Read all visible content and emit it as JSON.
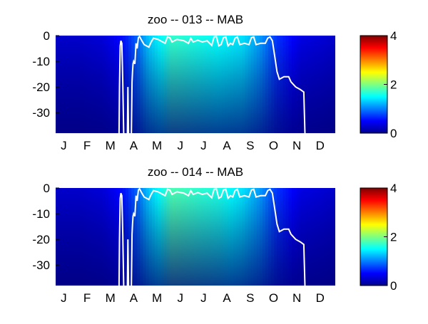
{
  "chart_data": [
    {
      "type": "heatmap",
      "title": "zoo -- 013 -- MAB",
      "x_tick_labels": [
        "J",
        "F",
        "M",
        "A",
        "M",
        "J",
        "J",
        "A",
        "S",
        "O",
        "N",
        "D"
      ],
      "y_ticks": [
        0,
        -10,
        -20,
        -30
      ],
      "ylim": [
        -38,
        0
      ],
      "xlim_month": [
        0,
        12
      ],
      "colorbar": {
        "ticks": [
          0,
          2,
          4
        ],
        "range": [
          0,
          4
        ],
        "colormap": "jet"
      },
      "surface_values": {
        "month": [
          0.0,
          1.0,
          2.0,
          2.5,
          3.0,
          3.5,
          4.0,
          5.0,
          6.0,
          7.0,
          8.0,
          8.8,
          9.5,
          10.5,
          12.0
        ],
        "value": [
          0.3,
          0.3,
          0.35,
          0.45,
          0.6,
          0.9,
          1.3,
          1.7,
          1.6,
          1.5,
          1.4,
          1.1,
          0.7,
          0.4,
          0.3
        ]
      },
      "contour_line": {
        "color": "#ffffff",
        "points": [
          [
            2.72,
            -38
          ],
          [
            2.74,
            -20
          ],
          [
            2.77,
            -4
          ],
          [
            2.8,
            -2
          ],
          [
            2.84,
            -3
          ],
          [
            2.88,
            -18
          ],
          [
            2.92,
            -38
          ],
          [
            3.08,
            -38
          ],
          [
            3.1,
            -20
          ],
          [
            3.13,
            -38
          ],
          [
            3.25,
            -38
          ],
          [
            3.28,
            -18
          ],
          [
            3.3,
            -14
          ],
          [
            3.32,
            -11
          ],
          [
            3.35,
            -10
          ],
          [
            3.4,
            -11
          ],
          [
            3.42,
            -8
          ],
          [
            3.45,
            -3
          ],
          [
            3.5,
            -5
          ],
          [
            3.55,
            -0.8
          ],
          [
            3.6,
            -0.3
          ],
          [
            3.7,
            -2
          ],
          [
            3.8,
            -3.5
          ],
          [
            4.0,
            -4.5
          ],
          [
            4.1,
            -2.5
          ],
          [
            4.2,
            -1
          ],
          [
            4.4,
            -1.5
          ],
          [
            4.5,
            -2
          ],
          [
            4.7,
            -3
          ],
          [
            4.8,
            -0.5
          ],
          [
            4.9,
            -0.8
          ],
          [
            5.0,
            -2.5
          ],
          [
            5.2,
            -1.5
          ],
          [
            5.5,
            -2
          ],
          [
            5.7,
            -3
          ],
          [
            5.8,
            -1
          ],
          [
            5.9,
            -2.5
          ],
          [
            6.1,
            -1.8
          ],
          [
            6.3,
            -2.5
          ],
          [
            6.5,
            -2
          ],
          [
            6.7,
            -3.8
          ],
          [
            6.8,
            -0.5
          ],
          [
            6.9,
            -0.4
          ],
          [
            7.0,
            -4
          ],
          [
            7.1,
            -3.5
          ],
          [
            7.2,
            -0.8
          ],
          [
            7.3,
            -0.5
          ],
          [
            7.4,
            -4
          ],
          [
            7.5,
            -3
          ],
          [
            7.6,
            -3.5
          ],
          [
            7.7,
            -1
          ],
          [
            7.8,
            -0.5
          ],
          [
            7.9,
            -3.5
          ],
          [
            8.1,
            -3
          ],
          [
            8.3,
            -3.5
          ],
          [
            8.4,
            -0.8
          ],
          [
            8.5,
            -0.5
          ],
          [
            8.6,
            -3.5
          ],
          [
            8.8,
            -3
          ],
          [
            9.0,
            -3
          ],
          [
            9.1,
            -1
          ],
          [
            9.2,
            -0.5
          ],
          [
            9.3,
            -2
          ],
          [
            9.4,
            -8
          ],
          [
            9.5,
            -14
          ],
          [
            9.6,
            -17
          ],
          [
            9.8,
            -16
          ],
          [
            10.0,
            -16
          ],
          [
            10.1,
            -18
          ],
          [
            10.3,
            -20
          ],
          [
            10.5,
            -21
          ],
          [
            10.65,
            -22
          ],
          [
            10.7,
            -38
          ]
        ]
      }
    },
    {
      "type": "heatmap",
      "title": "zoo -- 014 -- MAB",
      "x_tick_labels": [
        "J",
        "F",
        "M",
        "A",
        "M",
        "J",
        "J",
        "A",
        "S",
        "O",
        "N",
        "D"
      ],
      "y_ticks": [
        0,
        -10,
        -20,
        -30
      ],
      "ylim": [
        -38,
        0
      ],
      "xlim_month": [
        0,
        12
      ],
      "colorbar": {
        "ticks": [
          0,
          2,
          4
        ],
        "range": [
          0,
          4
        ],
        "colormap": "jet"
      },
      "surface_values": {
        "month": [
          0.0,
          1.0,
          2.0,
          2.5,
          3.0,
          3.5,
          4.0,
          5.0,
          6.0,
          7.0,
          8.0,
          8.8,
          9.5,
          10.5,
          12.0
        ],
        "value": [
          0.3,
          0.3,
          0.35,
          0.45,
          0.6,
          0.9,
          1.3,
          1.8,
          1.7,
          1.6,
          1.4,
          1.1,
          0.7,
          0.4,
          0.3
        ]
      },
      "contour_line": {
        "color": "#ffffff",
        "points": [
          [
            2.72,
            -38
          ],
          [
            2.74,
            -20
          ],
          [
            2.77,
            -4
          ],
          [
            2.8,
            -2
          ],
          [
            2.84,
            -3
          ],
          [
            2.88,
            -18
          ],
          [
            2.92,
            -38
          ],
          [
            3.08,
            -38
          ],
          [
            3.1,
            -20
          ],
          [
            3.13,
            -38
          ],
          [
            3.25,
            -38
          ],
          [
            3.28,
            -18
          ],
          [
            3.3,
            -14
          ],
          [
            3.32,
            -11
          ],
          [
            3.35,
            -10
          ],
          [
            3.4,
            -11
          ],
          [
            3.42,
            -8
          ],
          [
            3.45,
            -3
          ],
          [
            3.5,
            -5
          ],
          [
            3.55,
            -0.8
          ],
          [
            3.6,
            -0.3
          ],
          [
            3.7,
            -2
          ],
          [
            3.8,
            -3.5
          ],
          [
            4.0,
            -4.5
          ],
          [
            4.1,
            -2.5
          ],
          [
            4.2,
            -1
          ],
          [
            4.4,
            -1.5
          ],
          [
            4.5,
            -2
          ],
          [
            4.7,
            -3
          ],
          [
            4.8,
            -0.5
          ],
          [
            4.9,
            -0.8
          ],
          [
            5.0,
            -2.5
          ],
          [
            5.2,
            -1.5
          ],
          [
            5.5,
            -2
          ],
          [
            5.7,
            -3
          ],
          [
            5.8,
            -1
          ],
          [
            5.9,
            -2.5
          ],
          [
            6.1,
            -1.8
          ],
          [
            6.3,
            -2.5
          ],
          [
            6.5,
            -2
          ],
          [
            6.7,
            -3.8
          ],
          [
            6.8,
            -0.5
          ],
          [
            6.9,
            -0.4
          ],
          [
            7.0,
            -4
          ],
          [
            7.1,
            -3.5
          ],
          [
            7.2,
            -0.8
          ],
          [
            7.3,
            -0.5
          ],
          [
            7.4,
            -4
          ],
          [
            7.5,
            -3
          ],
          [
            7.6,
            -3.5
          ],
          [
            7.7,
            -1
          ],
          [
            7.8,
            -0.5
          ],
          [
            7.9,
            -3.5
          ],
          [
            8.1,
            -3
          ],
          [
            8.3,
            -3.5
          ],
          [
            8.4,
            -0.8
          ],
          [
            8.5,
            -0.5
          ],
          [
            8.6,
            -3.5
          ],
          [
            8.8,
            -3
          ],
          [
            9.0,
            -3
          ],
          [
            9.1,
            -1
          ],
          [
            9.2,
            -0.5
          ],
          [
            9.3,
            -2
          ],
          [
            9.4,
            -8
          ],
          [
            9.5,
            -14
          ],
          [
            9.6,
            -17
          ],
          [
            9.8,
            -16
          ],
          [
            10.0,
            -16
          ],
          [
            10.1,
            -18
          ],
          [
            10.3,
            -20
          ],
          [
            10.5,
            -21
          ],
          [
            10.65,
            -22
          ],
          [
            10.7,
            -38
          ]
        ]
      }
    }
  ]
}
